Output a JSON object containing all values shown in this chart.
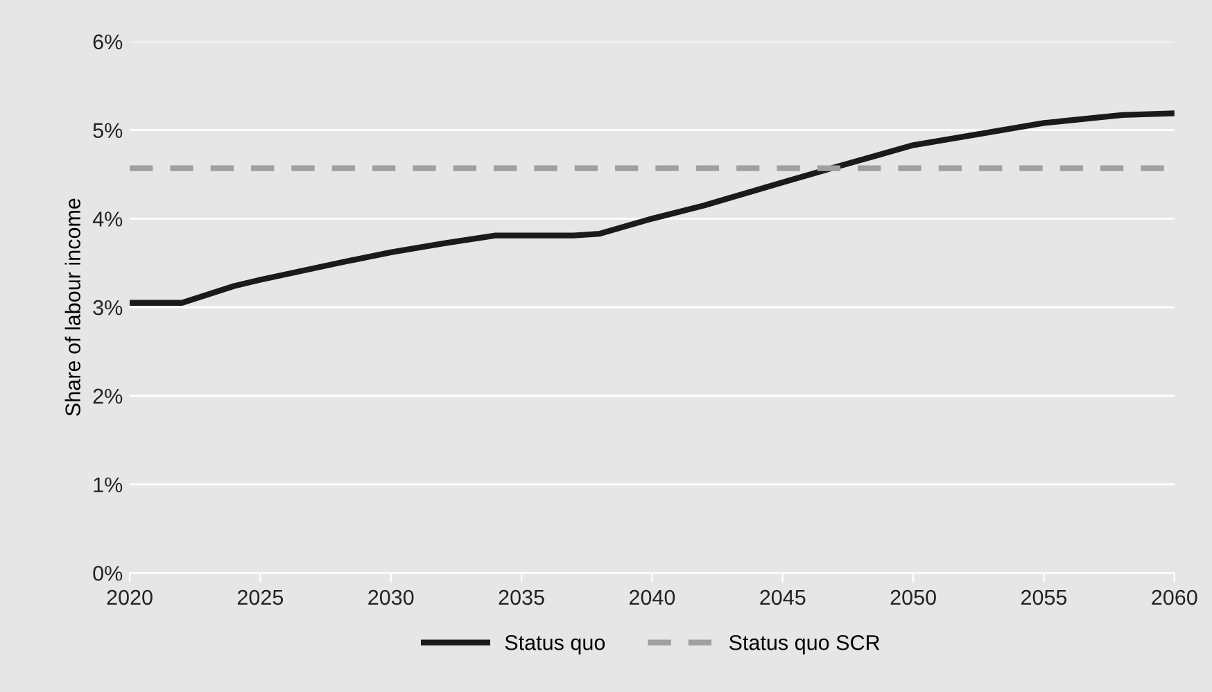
{
  "chart_data": {
    "type": "line",
    "ylabel": "Share of labour income",
    "xlim": [
      2020,
      2060
    ],
    "xticks": [
      2020,
      2025,
      2030,
      2035,
      2040,
      2045,
      2050,
      2055,
      2060
    ],
    "ylim": [
      0,
      6
    ],
    "yticks": [
      {
        "value": 0,
        "label": "0%"
      },
      {
        "value": 1,
        "label": "1%"
      },
      {
        "value": 2,
        "label": "2%"
      },
      {
        "value": 3,
        "label": "3%"
      },
      {
        "value": 4,
        "label": "4%"
      },
      {
        "value": 5,
        "label": "5%"
      },
      {
        "value": 6,
        "label": "6%"
      }
    ],
    "grid": "y",
    "legend": "bottom",
    "series": [
      {
        "name": "Status quo",
        "color": "#1a1a1a",
        "line_style": "solid",
        "x": [
          2020,
          2022,
          2024,
          2025,
          2028,
          2030,
          2032,
          2034,
          2037,
          2038,
          2040,
          2042,
          2045,
          2047,
          2050,
          2052,
          2055,
          2058,
          2060
        ],
        "values": [
          3.05,
          3.05,
          3.24,
          3.31,
          3.5,
          3.62,
          3.72,
          3.81,
          3.81,
          3.83,
          4.0,
          4.15,
          4.41,
          4.58,
          4.83,
          4.93,
          5.08,
          5.17,
          5.19
        ]
      },
      {
        "name": "Status quo SCR",
        "color": "#a0a0a0",
        "line_style": "dashed",
        "x": [
          2020,
          2060
        ],
        "values": [
          4.57,
          4.57
        ]
      }
    ]
  }
}
